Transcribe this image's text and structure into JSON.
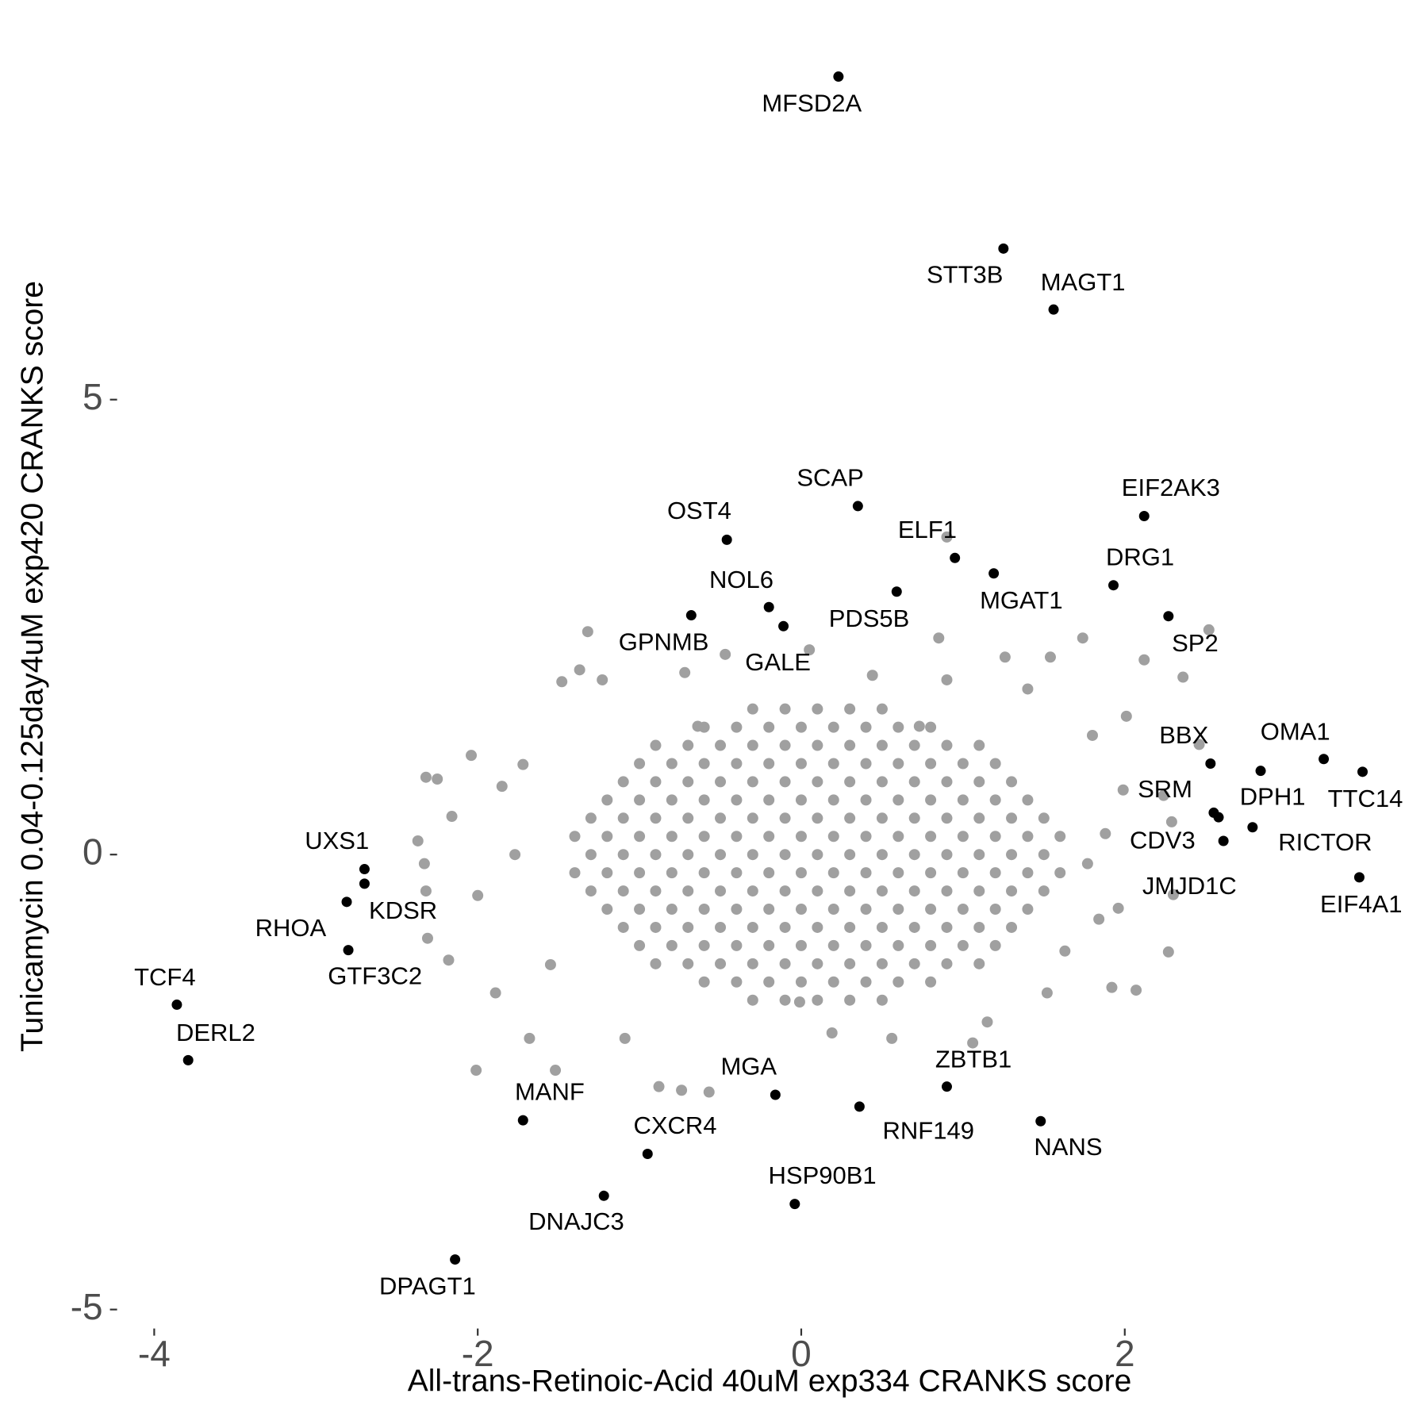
{
  "chart_data": {
    "type": "scatter",
    "x_label": "All-trans-Retinoic-Acid 40uM exp334 CRANKS score",
    "y_label": "Tunicamycin 0.04-0.125day4uM exp420 CRANKS score",
    "xlim": [
      -4.2,
      3.75
    ],
    "ylim": [
      -5.2,
      9.2
    ],
    "xticks": [
      -4,
      -2,
      0,
      2
    ],
    "yticks": [
      -5,
      0,
      5
    ],
    "grid": false,
    "series": [
      {
        "color": "#a0a0a0",
        "x": [
          0.9,
          2.52,
          2.12,
          2.36,
          1.74,
          0.85,
          -1.32,
          -1.48,
          -1.37,
          -1.23,
          -2.32,
          -2.25,
          -2.04,
          -1.72,
          -1.85,
          -2.16,
          -2.37,
          -2.33,
          -2.32,
          -2.31,
          -2.18,
          -2.01,
          -1.52,
          -1.68,
          -0.88,
          -0.74,
          -0.57,
          0.19,
          1.06,
          1.15,
          1.92,
          2.27,
          2.07,
          1.96,
          1.99,
          1.8,
          2.01,
          2.24,
          2.3,
          2.46,
          2.29,
          1.88,
          1.77,
          1.84,
          1.63,
          1.4,
          1.54,
          1.26,
          0.05,
          -0.47,
          -0.72,
          -0.01,
          0.56,
          -1.09,
          -1.89,
          -2.0,
          -1.77,
          -1.55,
          1.52,
          0.73,
          -0.64,
          0.9,
          0.44,
          -0.3,
          -0.1,
          0.1,
          0.3,
          0.5,
          -0.9,
          -0.7,
          -0.5,
          -0.3,
          -0.1,
          0.1,
          0.3,
          0.5,
          0.7,
          0.9,
          1.1,
          -1.1,
          -0.9,
          -0.7,
          -0.5,
          -0.3,
          -0.1,
          0.1,
          0.3,
          0.5,
          0.7,
          0.9,
          1.1,
          1.3,
          -1.3,
          -1.1,
          -0.9,
          -0.7,
          -0.5,
          -0.3,
          -0.1,
          0.1,
          0.3,
          0.5,
          0.7,
          0.9,
          1.1,
          1.3,
          1.5,
          -1.3,
          -1.1,
          -0.9,
          -0.7,
          -0.5,
          -0.3,
          -0.1,
          0.1,
          0.3,
          0.5,
          0.7,
          0.9,
          1.1,
          1.3,
          1.5,
          -1.3,
          -1.1,
          -0.9,
          -0.7,
          -0.5,
          -0.3,
          -0.1,
          0.1,
          0.3,
          0.5,
          0.7,
          0.9,
          1.1,
          1.3,
          1.5,
          -1.1,
          -0.9,
          -0.7,
          -0.5,
          -0.3,
          -0.1,
          0.1,
          0.3,
          0.5,
          0.7,
          0.9,
          1.1,
          1.3,
          -0.9,
          -0.7,
          -0.5,
          -0.3,
          -0.1,
          0.1,
          0.3,
          0.5,
          0.7,
          0.9,
          1.1,
          -0.3,
          -0.1,
          0.1,
          0.3,
          0.5,
          -0.6,
          -0.4,
          -0.2,
          0,
          0.2,
          0.4,
          0.6,
          0.8,
          -1,
          -0.8,
          -0.6,
          -0.4,
          -0.2,
          0,
          0.2,
          0.4,
          0.6,
          0.8,
          1,
          1.2,
          -1.2,
          -1,
          -0.8,
          -0.6,
          -0.4,
          -0.2,
          0,
          0.2,
          0.4,
          0.6,
          0.8,
          1,
          1.2,
          1.4,
          -1.4,
          -1.2,
          -1,
          -0.8,
          -0.6,
          -0.4,
          -0.2,
          0,
          0.2,
          0.4,
          0.6,
          0.8,
          1,
          1.2,
          1.4,
          1.6,
          -1.4,
          -1.2,
          -1,
          -0.8,
          -0.6,
          -0.4,
          -0.2,
          0,
          0.2,
          0.4,
          0.6,
          0.8,
          1,
          1.2,
          1.4,
          1.6,
          -1.2,
          -1,
          -0.8,
          -0.6,
          -0.4,
          -0.2,
          0,
          0.2,
          0.4,
          0.6,
          0.8,
          1,
          1.2,
          1.4,
          -1,
          -0.8,
          -0.6,
          -0.4,
          -0.2,
          0,
          0.2,
          0.4,
          0.6,
          0.8,
          1,
          1.2,
          -0.6,
          -0.4,
          -0.2,
          0,
          0.2,
          0.4,
          0.6,
          0.8
        ],
        "values": [
          3.49,
          2.47,
          2.14,
          1.95,
          2.38,
          2.38,
          2.45,
          1.9,
          2.03,
          1.92,
          0.85,
          0.83,
          1.09,
          0.99,
          0.75,
          0.42,
          0.15,
          -0.1,
          -0.4,
          -0.92,
          -1.16,
          -2.37,
          -2.37,
          -2.02,
          -2.55,
          -2.59,
          -2.61,
          -1.96,
          -2.07,
          -1.84,
          -1.46,
          -1.07,
          -1.49,
          -0.59,
          0.71,
          1.31,
          1.52,
          0.65,
          -0.44,
          1.21,
          0.36,
          0.23,
          -0.1,
          -0.71,
          -1.06,
          1.82,
          2.17,
          2.17,
          2.25,
          2.2,
          2.0,
          -1.62,
          -2.02,
          -2.02,
          -1.52,
          -0.45,
          0.0,
          -1.21,
          -1.52,
          1.41,
          1.41,
          1.92,
          1.97,
          1.6,
          1.6,
          1.6,
          1.6,
          1.6,
          1.2,
          1.2,
          1.2,
          1.2,
          1.2,
          1.2,
          1.2,
          1.2,
          1.2,
          1.2,
          1.2,
          0.8,
          0.8,
          0.8,
          0.8,
          0.8,
          0.8,
          0.8,
          0.8,
          0.8,
          0.8,
          0.8,
          0.8,
          0.8,
          0.4,
          0.4,
          0.4,
          0.4,
          0.4,
          0.4,
          0.4,
          0.4,
          0.4,
          0.4,
          0.4,
          0.4,
          0.4,
          0.4,
          0.4,
          0,
          0,
          0,
          0,
          0,
          0,
          0,
          0,
          0,
          0,
          0,
          0,
          0,
          0,
          0,
          -0.4,
          -0.4,
          -0.4,
          -0.4,
          -0.4,
          -0.4,
          -0.4,
          -0.4,
          -0.4,
          -0.4,
          -0.4,
          -0.4,
          -0.4,
          -0.4,
          -0.4,
          -0.8,
          -0.8,
          -0.8,
          -0.8,
          -0.8,
          -0.8,
          -0.8,
          -0.8,
          -0.8,
          -0.8,
          -0.8,
          -0.8,
          -0.8,
          -1.2,
          -1.2,
          -1.2,
          -1.2,
          -1.2,
          -1.2,
          -1.2,
          -1.2,
          -1.2,
          -1.2,
          -1.2,
          -1.6,
          -1.6,
          -1.6,
          -1.6,
          -1.6,
          1.4,
          1.4,
          1.4,
          1.4,
          1.4,
          1.4,
          1.4,
          1.4,
          1,
          1,
          1,
          1,
          1,
          1,
          1,
          1,
          1,
          1,
          1,
          1,
          0.6,
          0.6,
          0.6,
          0.6,
          0.6,
          0.6,
          0.6,
          0.6,
          0.6,
          0.6,
          0.6,
          0.6,
          0.6,
          0.6,
          0.2,
          0.2,
          0.2,
          0.2,
          0.2,
          0.2,
          0.2,
          0.2,
          0.2,
          0.2,
          0.2,
          0.2,
          0.2,
          0.2,
          0.2,
          0.2,
          -0.2,
          -0.2,
          -0.2,
          -0.2,
          -0.2,
          -0.2,
          -0.2,
          -0.2,
          -0.2,
          -0.2,
          -0.2,
          -0.2,
          -0.2,
          -0.2,
          -0.2,
          -0.2,
          -0.6,
          -0.6,
          -0.6,
          -0.6,
          -0.6,
          -0.6,
          -0.6,
          -0.6,
          -0.6,
          -0.6,
          -0.6,
          -0.6,
          -0.6,
          -0.6,
          -1,
          -1,
          -1,
          -1,
          -1,
          -1,
          -1,
          -1,
          -1,
          -1,
          -1,
          -1,
          -1.4,
          -1.4,
          -1.4,
          -1.4,
          -1.4,
          -1.4,
          -1.4,
          -1.4
        ]
      },
      {
        "color": "#000000",
        "x": [
          0.23,
          1.25,
          1.56,
          0.35,
          2.12,
          -0.46,
          0.95,
          1.19,
          1.93,
          0.59,
          -0.2,
          -0.68,
          2.27,
          -0.11,
          2.53,
          3.23,
          2.84,
          3.47,
          2.55,
          2.58,
          2.61,
          2.79,
          3.45,
          -2.7,
          -2.7,
          -2.81,
          -2.8,
          -3.86,
          -3.79,
          -0.16,
          0.9,
          0.36,
          1.48,
          -1.72,
          -0.95,
          -0.04,
          -1.22,
          -2.14
        ],
        "values": [
          8.55,
          6.66,
          5.99,
          3.83,
          3.72,
          3.46,
          3.26,
          3.09,
          2.96,
          2.89,
          2.72,
          2.63,
          2.62,
          2.51,
          1.0,
          1.05,
          0.92,
          0.91,
          0.46,
          0.41,
          0.15,
          0.3,
          -0.25,
          -0.16,
          -0.32,
          -0.52,
          -1.05,
          -1.65,
          -2.26,
          -2.64,
          -2.55,
          -2.77,
          -2.93,
          -2.92,
          -3.29,
          -3.84,
          -3.75,
          -4.45
        ],
        "labels": [
          "MFSD2A",
          "STT3B",
          "MAGT1",
          "SCAP",
          "EIF2AK3",
          "OST4",
          "ELF1",
          "MGAT1",
          "DRG1",
          "PDS5B",
          "NOL6",
          "GPNMB",
          "SP2",
          "GALE",
          "BBX",
          "OMA1",
          "DPH1",
          "TTC14",
          "SRM",
          "CDV3",
          "JMJD1C",
          "RICTOR",
          "EIF4A1",
          "UXS1",
          "KDSR",
          "RHOA",
          "GTF3C2",
          "TCF4",
          "DERL2",
          "MGA",
          "ZBTB1",
          "RNF149",
          "NANS",
          "MANF",
          "CXCR4",
          "HSP90B1",
          "DNAJC3",
          "DPAGT1"
        ]
      }
    ]
  }
}
